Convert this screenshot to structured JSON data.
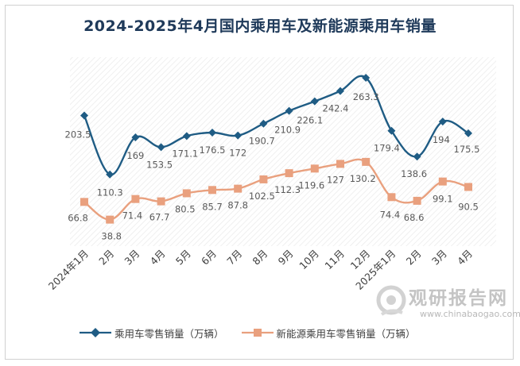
{
  "chart_data": {
    "type": "line",
    "title": "2024-2025年4月国内乘用车及新能源乘用车销量",
    "categories": [
      "2024年1月",
      "2月",
      "3月",
      "4月",
      "5月",
      "6月",
      "7月",
      "8月",
      "9月",
      "10月",
      "11月",
      "12月",
      "2025年1月",
      "2月",
      "3月",
      "4月"
    ],
    "series": [
      {
        "name": "乘用车零售销量（万辆）",
        "color": "#1f5c84",
        "marker": "diamond",
        "values": [
          203.5,
          110.3,
          169,
          153.5,
          171.1,
          176.5,
          172,
          190.7,
          210.9,
          226.1,
          242.4,
          263.3,
          179.4,
          138.6,
          194,
          175.5
        ],
        "labels": [
          "203.5",
          "110.3",
          "169",
          "153.5",
          "171.1",
          "176.5",
          "172",
          "190.7",
          "210.9",
          "226.1",
          "242.4",
          "263.3",
          "179.4",
          "138.6",
          "194",
          "175.5"
        ]
      },
      {
        "name": "新能源乘用车零售销量（万辆）",
        "color": "#e9a07e",
        "marker": "square",
        "values": [
          66.8,
          38.8,
          71.4,
          67.7,
          80.5,
          85.7,
          87.8,
          102.5,
          112.3,
          119.6,
          127,
          130.2,
          74.4,
          68.6,
          99.1,
          90.5
        ],
        "labels": [
          "66.8",
          "38.8",
          "71.4",
          "67.7",
          "80.5",
          "85.7",
          "87.8",
          "102.5",
          "112.3",
          "119.6",
          "127",
          "130.2",
          "74.4",
          "68.6",
          "99.1",
          "90.5"
        ]
      }
    ],
    "ylim": [
      0,
      300
    ],
    "grid": false,
    "legend_position": "bottom-left"
  },
  "watermark": {
    "text": "观研报告网",
    "url": "www.chinabaogao.com"
  }
}
